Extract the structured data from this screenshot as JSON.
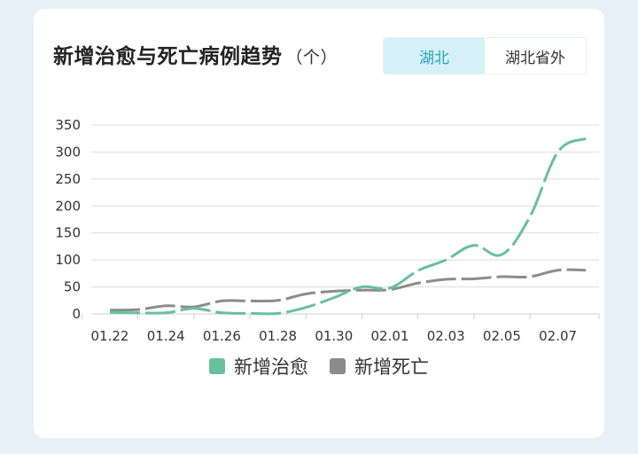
{
  "header": {
    "title": "新增治愈与死亡病例趋势",
    "unit": "（个）"
  },
  "toggle": {
    "options": [
      "湖北",
      "湖北省外"
    ],
    "selected": "湖北"
  },
  "colors": {
    "recovered": "#66c29a",
    "deaths": "#8c8c8c",
    "active_bg": "#d6f0f7",
    "active_text": "#26a4bf"
  },
  "chart_data": {
    "type": "line",
    "x": [
      "01.22",
      "01.23",
      "01.24",
      "01.25",
      "01.26",
      "01.27",
      "01.28",
      "01.29",
      "01.30",
      "01.31",
      "02.01",
      "02.02",
      "02.03",
      "02.04",
      "02.05",
      "02.06",
      "02.07",
      "02.08"
    ],
    "x_tick_labels": [
      "01.22",
      "01.24",
      "01.26",
      "01.28",
      "01.30",
      "02.01",
      "02.03",
      "02.05",
      "02.07"
    ],
    "series": [
      {
        "name": "新增治愈",
        "values": [
          3,
          2,
          2,
          10,
          2,
          1,
          1,
          12,
          30,
          50,
          48,
          80,
          100,
          127,
          110,
          180,
          300,
          325
        ]
      },
      {
        "name": "新增死亡",
        "values": [
          7,
          8,
          15,
          13,
          24,
          24,
          25,
          37,
          42,
          44,
          45,
          57,
          64,
          65,
          69,
          69,
          81,
          81
        ]
      }
    ],
    "y_ticks": [
      0,
      50,
      100,
      150,
      200,
      250,
      300,
      350
    ],
    "ylim": [
      0,
      350
    ],
    "grid": true,
    "line_style": "dashed",
    "legend_position": "bottom"
  }
}
